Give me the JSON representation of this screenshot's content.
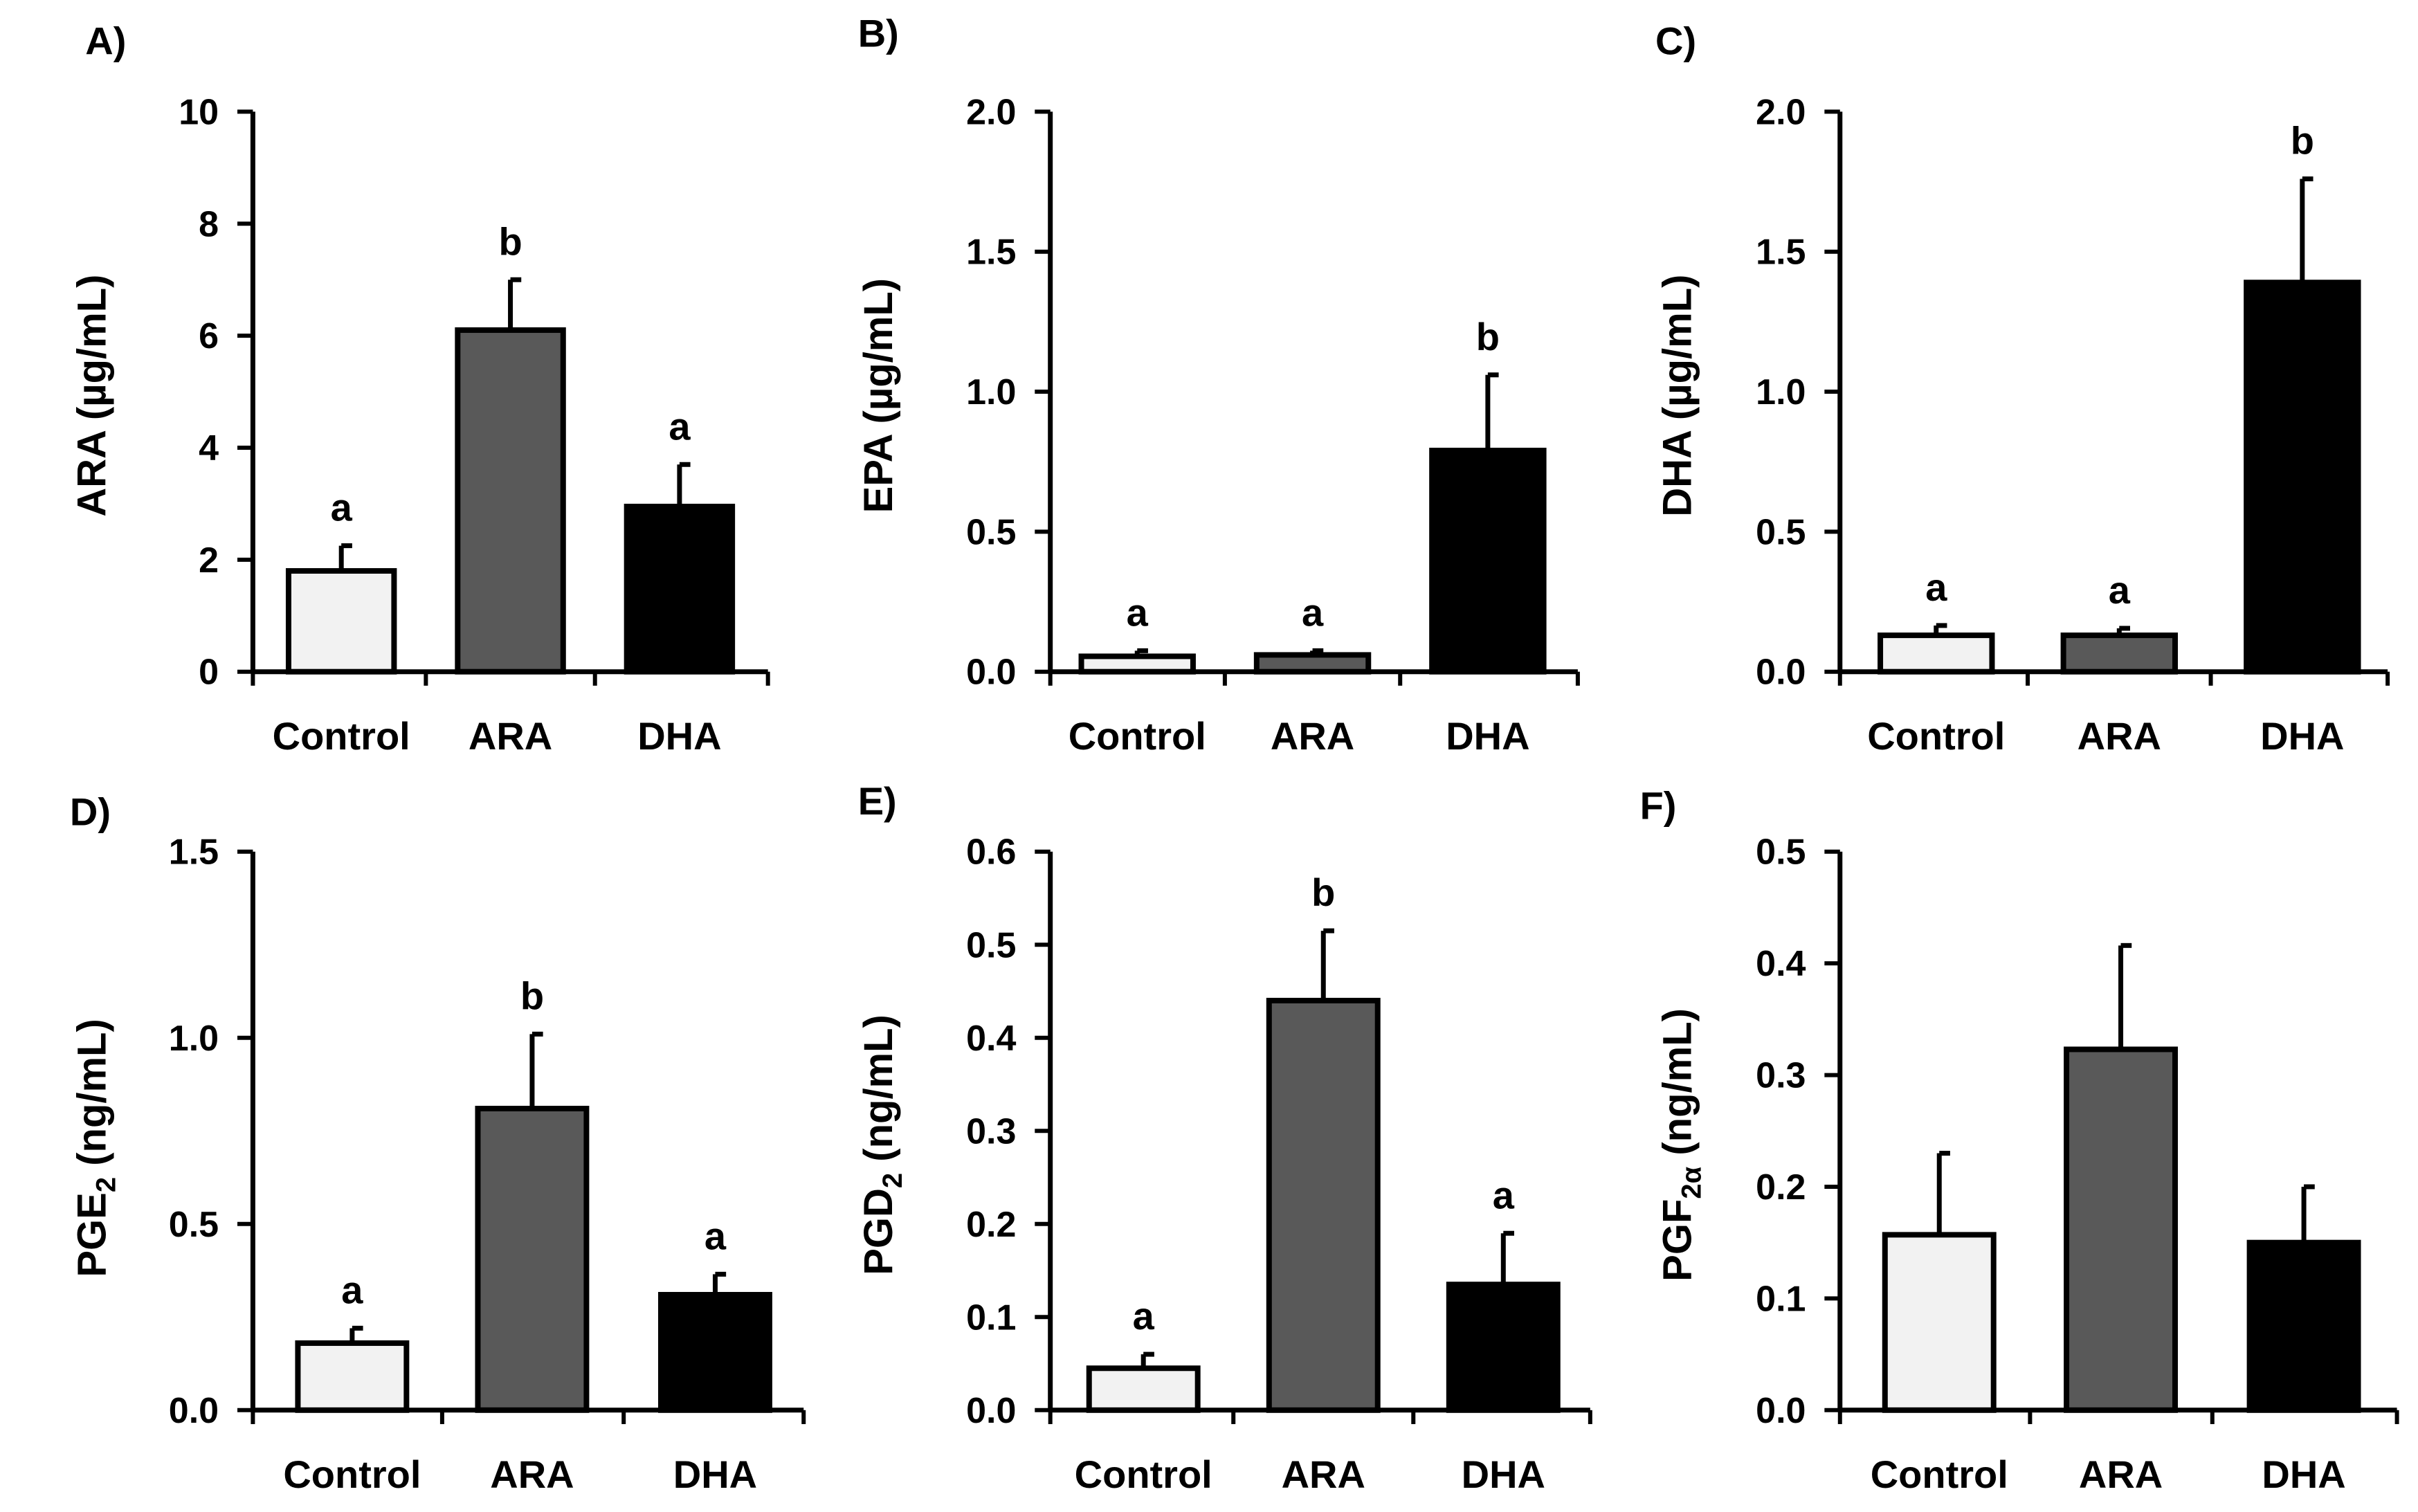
{
  "chart_data": [
    {
      "type": "bar",
      "panel": "A)",
      "ylabel": "ARA (µg/mL)",
      "ylabel_main": "ARA (µg/mL)",
      "categories": [
        "Control",
        "ARA",
        "DHA"
      ],
      "values": [
        1.8,
        6.1,
        2.95
      ],
      "errors": [
        0.45,
        0.9,
        0.75
      ],
      "significance": [
        "a",
        "b",
        "a"
      ],
      "ylim": [
        0,
        10
      ],
      "yticks": [
        0,
        2,
        4,
        6,
        8,
        10
      ],
      "ytick_labels": [
        "0",
        "2",
        "4",
        "6",
        "8",
        "10"
      ],
      "colors": [
        "#f2f2f2",
        "#595959",
        "#000000"
      ]
    },
    {
      "type": "bar",
      "panel": "B)",
      "ylabel": "EPA (µg/mL)",
      "ylabel_main": "EPA (µg/mL)",
      "categories": [
        "Control",
        "ARA",
        "DHA"
      ],
      "values": [
        0.055,
        0.06,
        0.79
      ],
      "errors": [
        0.02,
        0.015,
        0.27
      ],
      "significance": [
        "a",
        "a",
        "b"
      ],
      "ylim": [
        0,
        2.0
      ],
      "yticks": [
        0,
        0.5,
        1.0,
        1.5,
        2.0
      ],
      "ytick_labels": [
        "0.0",
        "0.5",
        "1.0",
        "1.5",
        "2.0"
      ],
      "colors": [
        "#f2f2f2",
        "#595959",
        "#000000"
      ]
    },
    {
      "type": "bar",
      "panel": "C)",
      "ylabel": "DHA (µg/mL)",
      "ylabel_main": "DHA (µg/mL)",
      "categories": [
        "Control",
        "ARA",
        "DHA"
      ],
      "values": [
        0.13,
        0.13,
        1.39
      ],
      "errors": [
        0.035,
        0.025,
        0.37
      ],
      "significance": [
        "a",
        "a",
        "b"
      ],
      "ylim": [
        0,
        2.0
      ],
      "yticks": [
        0,
        0.5,
        1.0,
        1.5,
        2.0
      ],
      "ytick_labels": [
        "0.0",
        "0.5",
        "1.0",
        "1.5",
        "2.0"
      ],
      "colors": [
        "#f2f2f2",
        "#595959",
        "#000000"
      ]
    },
    {
      "type": "bar",
      "panel": "D)",
      "ylabel": "PGE2 (ng/mL)",
      "ylabel_main": "PGE",
      "ylabel_sub": "2",
      "ylabel_rest": " (ng/mL)",
      "categories": [
        "Control",
        "ARA",
        "DHA"
      ],
      "values": [
        0.18,
        0.81,
        0.31
      ],
      "errors": [
        0.04,
        0.2,
        0.055
      ],
      "significance": [
        "a",
        "b",
        "a"
      ],
      "ylim": [
        0,
        1.5
      ],
      "yticks": [
        0,
        0.5,
        1.0,
        1.5
      ],
      "ytick_labels": [
        "0.0",
        "0.5",
        "1.0",
        "1.5"
      ],
      "colors": [
        "#f2f2f2",
        "#595959",
        "#000000"
      ]
    },
    {
      "type": "bar",
      "panel": "E)",
      "ylabel": "PGD2 (ng/mL)",
      "ylabel_main": "PGD",
      "ylabel_sub": "2",
      "ylabel_rest": " (ng/mL)",
      "categories": [
        "Control",
        "ARA",
        "DHA"
      ],
      "values": [
        0.045,
        0.44,
        0.135
      ],
      "errors": [
        0.015,
        0.075,
        0.055
      ],
      "significance": [
        "a",
        "b",
        "a"
      ],
      "ylim": [
        0,
        0.6
      ],
      "yticks": [
        0,
        0.1,
        0.2,
        0.3,
        0.4,
        0.5,
        0.6
      ],
      "ytick_labels": [
        "0.0",
        "0.1",
        "0.2",
        "0.3",
        "0.4",
        "0.5",
        "0.6"
      ],
      "colors": [
        "#f2f2f2",
        "#595959",
        "#000000"
      ]
    },
    {
      "type": "bar",
      "panel": "F)",
      "ylabel": "PGF2α (ng/mL)",
      "ylabel_main": "PGF",
      "ylabel_sub": "2α",
      "ylabel_rest": " (ng/mL)",
      "categories": [
        "Control",
        "ARA",
        "DHA"
      ],
      "values": [
        0.157,
        0.323,
        0.15
      ],
      "errors": [
        0.073,
        0.093,
        0.05
      ],
      "significance": [
        "",
        "",
        ""
      ],
      "ylim": [
        0,
        0.5
      ],
      "yticks": [
        0,
        0.1,
        0.2,
        0.3,
        0.4,
        0.5
      ],
      "ytick_labels": [
        "0.0",
        "0.1",
        "0.2",
        "0.3",
        "0.4",
        "0.5"
      ],
      "colors": [
        "#f2f2f2",
        "#595959",
        "#000000"
      ]
    }
  ]
}
